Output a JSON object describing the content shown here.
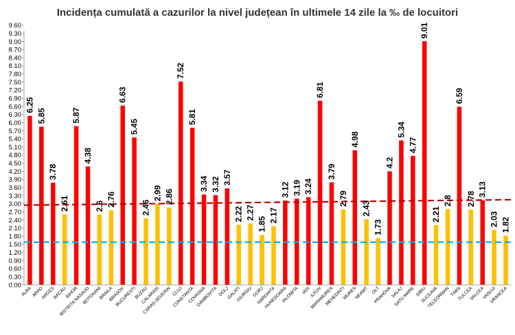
{
  "chart_data": {
    "type": "bar",
    "title": "Incidența cumulată a cazurilor la nivel județean în ultimele 14 zile la ‰ de locuitori",
    "xlabel": "",
    "ylabel": "",
    "ylim": [
      0,
      9.9
    ],
    "yticks": [
      "0.00",
      "0.30",
      "0.60",
      "0.90",
      "1.20",
      "1.50",
      "1.80",
      "2.10",
      "2.40",
      "2.70",
      "3.00",
      "3.30",
      "3.60",
      "3.90",
      "4.20",
      "4.50",
      "4.80",
      "5.10",
      "5.40",
      "5.70",
      "6.00",
      "6.30",
      "6.60",
      "6.90",
      "7.20",
      "7.50",
      "7.80",
      "8.10",
      "8.40",
      "8.70",
      "9.00",
      "9.30",
      "9.60"
    ],
    "grid": false,
    "legend": "none",
    "categories": [
      "ALBA",
      "ARAD",
      "ARGES",
      "BACAU",
      "BIHOR",
      "BISTRITA NASAUD",
      "BOTOSANI",
      "BRAILA",
      "BRASOV",
      "BUCURESTI",
      "BUZAU",
      "CALARASI",
      "CARAS-SEVERIN",
      "CLUJ",
      "CONSTANTA",
      "COVASNA",
      "DAMBOVITA",
      "DOLJ",
      "GALATI",
      "GIURGIU",
      "GORJ",
      "HARGHITA",
      "HUNEDOARA",
      "IALOMITA",
      "IASI",
      "ILFOV",
      "MARAMURES",
      "MEHEDINTI",
      "MURES",
      "NEAMT",
      "OLT",
      "PRAHOVA",
      "SALAJ",
      "SATU MARE",
      "SIBIU",
      "SUCEAVA",
      "TELEORMAN",
      "TIMIS",
      "TULCEA",
      "VALCEA",
      "VASLUI",
      "VRANCEA"
    ],
    "values": [
      6.25,
      5.85,
      3.78,
      2.61,
      5.87,
      4.38,
      2.6,
      2.76,
      6.63,
      5.45,
      2.46,
      2.99,
      2.86,
      7.52,
      5.81,
      3.34,
      3.32,
      3.57,
      2.22,
      2.27,
      1.85,
      2.17,
      3.12,
      3.19,
      3.24,
      6.81,
      3.79,
      2.79,
      4.98,
      2.43,
      1.73,
      4.2,
      5.34,
      4.77,
      9.01,
      2.21,
      2.8,
      6.59,
      2.78,
      3.13,
      2.03,
      1.82
    ],
    "labels": [
      "6.25",
      "5.85",
      "3.78",
      "2.61",
      "5.87",
      "4.38",
      "2.6",
      "2.76",
      "6.63",
      "5.45",
      "2.46",
      "2.99",
      "2.86",
      "7.52",
      "5.81",
      "3.34",
      "3.32",
      "3.57",
      "2.22",
      "2.27",
      "1.85",
      "2.17",
      "3.12",
      "3.19",
      "3.24",
      "6.81",
      "3.79",
      "2.79",
      "4.98",
      "2.43",
      "1.73",
      "4.2",
      "5.34",
      "4.77",
      "9.01",
      "2.21",
      "2.8",
      "6.59",
      "2.78",
      "3.13",
      "2.03",
      "1.82"
    ],
    "bar_colors": [
      "red",
      "red",
      "red",
      "yellow",
      "red",
      "red",
      "yellow",
      "yellow",
      "red",
      "red",
      "yellow",
      "yellow",
      "yellow",
      "red",
      "red",
      "red",
      "red",
      "red",
      "yellow",
      "yellow",
      "yellow",
      "yellow",
      "red",
      "red",
      "red",
      "red",
      "red",
      "yellow",
      "red",
      "yellow",
      "yellow",
      "red",
      "red",
      "red",
      "red",
      "yellow",
      "yellow",
      "red",
      "yellow",
      "red",
      "yellow",
      "yellow"
    ],
    "colors": {
      "red": "#ff0000",
      "yellow": "#ffc000",
      "red_line": "#c00000",
      "blue_line": "#00b0f0"
    },
    "reference_lines": [
      {
        "style": "dashed",
        "color": "red_line",
        "y_start": 2.95,
        "y_end": 3.15
      },
      {
        "style": "dashed",
        "color": "blue_line",
        "y_start": 1.58,
        "y_end": 1.58
      }
    ]
  }
}
